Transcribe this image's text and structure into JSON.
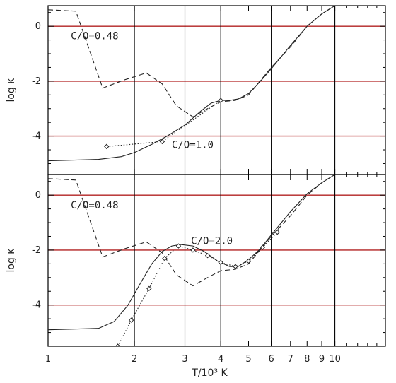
{
  "chart_data": [
    {
      "type": "line",
      "panel": "top",
      "xscale": "log",
      "xlim": [
        1,
        15
      ],
      "ylim": [
        -5.4,
        0.75
      ],
      "xlabel": "",
      "ylabel": "log κ",
      "xticks": [
        1,
        2,
        3,
        4,
        5,
        6,
        7,
        8,
        9,
        10
      ],
      "xtick_labels": [
        "1",
        "2",
        "3",
        "4",
        "5",
        "6",
        "7",
        "8",
        "9",
        "10"
      ],
      "yticks": [
        0,
        -2,
        -4
      ],
      "ytick_labels": [
        "0",
        "-2",
        "-4"
      ],
      "vlines": [
        2,
        3,
        4,
        6,
        10
      ],
      "hlines": [
        0,
        -2,
        -4
      ],
      "hline_color": "#b22222",
      "vline_color": "#000000",
      "annotations": [
        {
          "text": "C/O=0.48",
          "x": 1.2,
          "y": -0.35
        },
        {
          "text": "C/O=1.0",
          "x": 2.7,
          "y": -4.3
        }
      ],
      "series": [
        {
          "style": "solid",
          "x": [
            1.0,
            1.5,
            1.8,
            2.0,
            2.3,
            2.6,
            3.0,
            3.4,
            3.7,
            4.0,
            4.3,
            4.6,
            5.0,
            5.5,
            6.0,
            7.0,
            8.0,
            9.0,
            10.0,
            12.0
          ],
          "y": [
            -4.9,
            -4.85,
            -4.75,
            -4.6,
            -4.3,
            -4.0,
            -3.6,
            -3.1,
            -2.8,
            -2.7,
            -2.7,
            -2.65,
            -2.45,
            -2.0,
            -1.55,
            -0.7,
            0.0,
            0.45,
            0.75,
            1.1
          ]
        },
        {
          "style": "dashed",
          "x": [
            1.0,
            1.25,
            1.55,
            1.85,
            2.2,
            2.5,
            2.8,
            3.2,
            3.6,
            4.0,
            4.5,
            5.0,
            6.0,
            7.0,
            8.0,
            9.0,
            10.0
          ],
          "y": [
            0.6,
            0.55,
            -2.25,
            -1.95,
            -1.7,
            -2.1,
            -2.9,
            -3.3,
            -3.0,
            -2.75,
            -2.7,
            -2.5,
            -1.5,
            -0.75,
            0.0,
            0.45,
            0.75
          ]
        },
        {
          "style": "dotted-markers",
          "x": [
            1.6,
            2.5,
            4.0
          ],
          "y": [
            -4.38,
            -4.2,
            -2.7
          ]
        }
      ]
    },
    {
      "type": "line",
      "panel": "bottom",
      "xscale": "log",
      "xlim": [
        1,
        15
      ],
      "ylim": [
        -5.5,
        0.75
      ],
      "xlabel": "T/10³ K",
      "ylabel": "log κ",
      "xticks": [
        1,
        2,
        3,
        4,
        5,
        6,
        7,
        8,
        9,
        10
      ],
      "xtick_labels": [
        "1",
        "2",
        "3",
        "4",
        "5",
        "6",
        "7",
        "8",
        "9",
        "10"
      ],
      "yticks": [
        0,
        -2,
        -4
      ],
      "ytick_labels": [
        "0",
        "-2",
        "-4"
      ],
      "vlines": [
        2,
        3,
        4,
        6,
        10
      ],
      "hlines": [
        0,
        -2,
        -4
      ],
      "hline_color": "#b22222",
      "vline_color": "#000000",
      "annotations": [
        {
          "text": "C/O=0.48",
          "x": 1.2,
          "y": -0.35
        },
        {
          "text": "C/O=2.0",
          "x": 3.15,
          "y": -1.65
        }
      ],
      "series": [
        {
          "style": "solid",
          "x": [
            1.0,
            1.5,
            1.7,
            1.9,
            2.1,
            2.3,
            2.5,
            2.7,
            2.9,
            3.2,
            3.5,
            3.9,
            4.3,
            4.6,
            5.0,
            5.5,
            6.0,
            7.0,
            8.0,
            9.0,
            10.0,
            12.0
          ],
          "y": [
            -4.9,
            -4.85,
            -4.6,
            -4.0,
            -3.2,
            -2.5,
            -2.05,
            -1.85,
            -1.8,
            -1.85,
            -2.05,
            -2.4,
            -2.6,
            -2.6,
            -2.35,
            -1.95,
            -1.45,
            -0.6,
            0.05,
            0.45,
            0.75,
            1.1
          ]
        },
        {
          "style": "dashed",
          "x": [
            1.0,
            1.25,
            1.55,
            1.85,
            2.2,
            2.5,
            2.8,
            3.2,
            3.6,
            4.0,
            4.5,
            5.0,
            6.0,
            7.0,
            8.0,
            9.0,
            10.0
          ],
          "y": [
            0.6,
            0.55,
            -2.25,
            -1.95,
            -1.7,
            -2.1,
            -2.9,
            -3.3,
            -3.0,
            -2.75,
            -2.7,
            -2.5,
            -1.5,
            -0.75,
            0.0,
            0.45,
            0.75
          ]
        },
        {
          "style": "dotted-markers",
          "x": [
            1.75,
            1.95,
            2.25,
            2.55,
            2.85,
            3.2,
            3.6,
            4.0,
            4.5,
            5.0,
            5.6,
            6.3
          ],
          "y": [
            -5.5,
            -4.55,
            -3.4,
            -2.3,
            -1.85,
            -2.0,
            -2.2,
            -2.45,
            -2.6,
            -2.4,
            -1.9,
            -1.35
          ]
        }
      ]
    }
  ]
}
